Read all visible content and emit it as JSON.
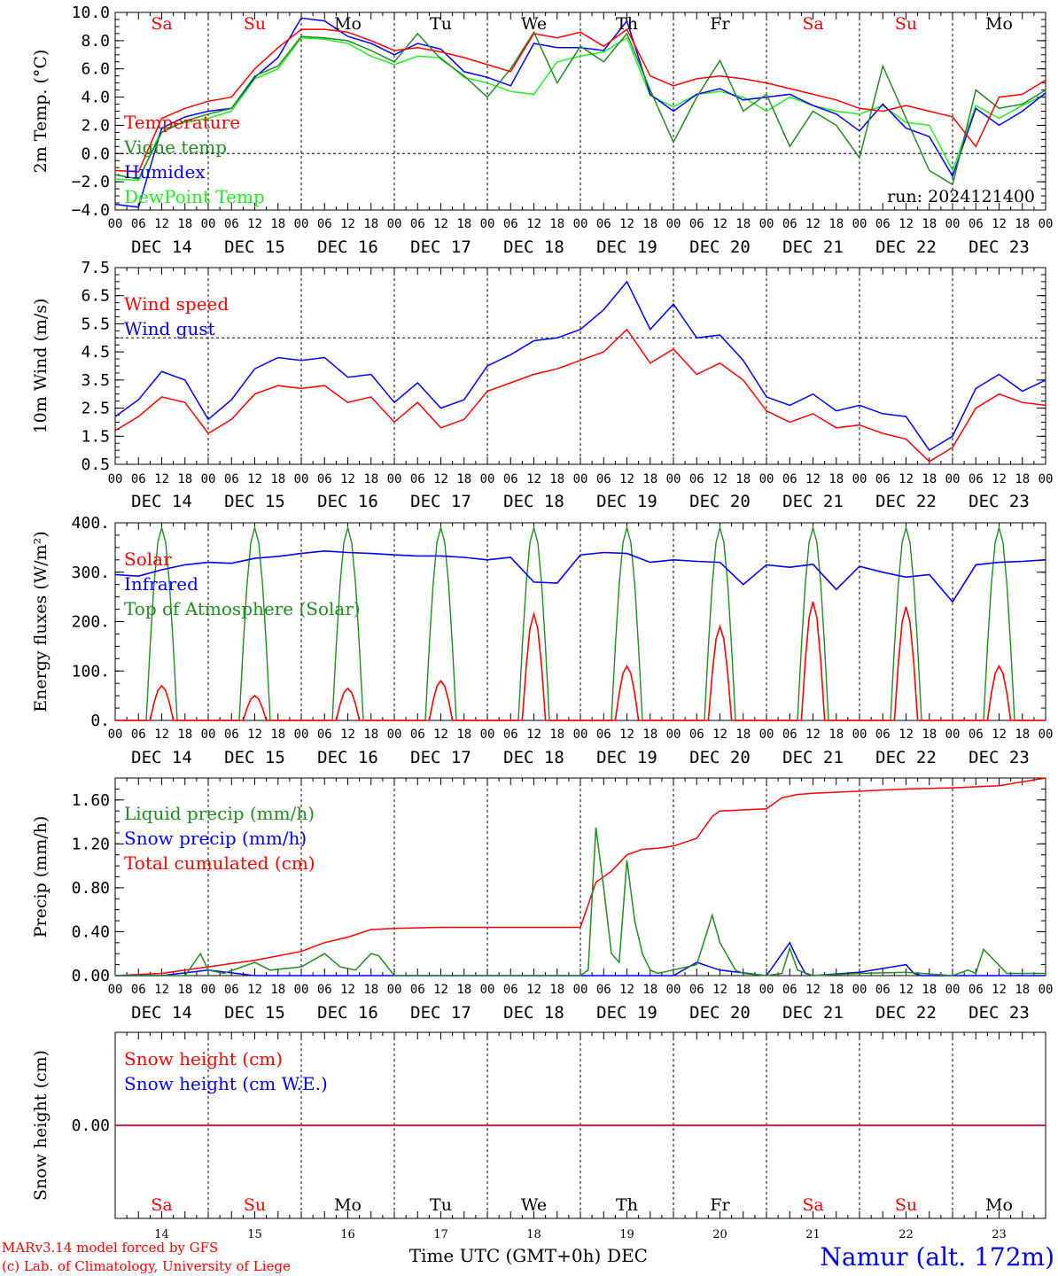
{
  "run_label": "run: 2024121400",
  "days": [
    {
      "abbr": "Sa",
      "num": "14",
      "date": "DEC 14",
      "weekend": true
    },
    {
      "abbr": "Su",
      "num": "15",
      "date": "DEC 15",
      "weekend": true
    },
    {
      "abbr": "Mo",
      "num": "16",
      "date": "DEC 16",
      "weekend": false
    },
    {
      "abbr": "Tu",
      "num": "17",
      "date": "DEC 17",
      "weekend": false
    },
    {
      "abbr": "We",
      "num": "18",
      "date": "DEC 18",
      "weekend": false
    },
    {
      "abbr": "Th",
      "num": "19",
      "date": "DEC 19",
      "weekend": false
    },
    {
      "abbr": "Fr",
      "num": "20",
      "date": "DEC 20",
      "weekend": false
    },
    {
      "abbr": "Sa",
      "num": "21",
      "date": "DEC 21",
      "weekend": true
    },
    {
      "abbr": "Su",
      "num": "22",
      "date": "DEC 22",
      "weekend": true
    },
    {
      "abbr": "Mo",
      "num": "23",
      "date": "DEC 23",
      "weekend": false
    }
  ],
  "hour_labels": [
    "00",
    "06",
    "12",
    "18"
  ],
  "end_hour_label": "00",
  "footer": {
    "xlabel": "Time UTC (GMT+0h)",
    "month": "DEC",
    "credit_line1": "MARv3.14 model forced by GFS",
    "credit_line2": "(c) Lab. of Climatology, University of Liege",
    "station": "Namur (alt. 172m)"
  },
  "colors": {
    "red": "#ff0000",
    "green": "#228b22",
    "blue": "#0000ff",
    "lightgreen": "#22ee22",
    "weekend": "#ff0000",
    "weekday": "#000000"
  },
  "chart_data": [
    {
      "type": "line",
      "id": "temp",
      "ylabel": "2m Temp. (°C)",
      "ylim": [
        -4,
        10
      ],
      "yticks": [
        -4,
        -2,
        0,
        2,
        4,
        6,
        8,
        10
      ],
      "ytick_labels": [
        "−4.0",
        "−2.0",
        "0.0",
        "2.0",
        "4.0",
        "6.0",
        "8.0",
        "10.0"
      ],
      "ref_line": 0,
      "x_unit": "hours since DEC 14 00 UTC",
      "series": [
        {
          "name": "Temperature",
          "color": "red",
          "x": [
            0,
            6,
            12,
            18,
            24,
            30,
            36,
            42,
            48,
            54,
            60,
            66,
            72,
            78,
            84,
            90,
            96,
            102,
            108,
            114,
            120,
            126,
            132,
            138,
            144,
            150,
            156,
            162,
            168,
            174,
            180,
            186,
            192,
            198,
            204,
            210,
            216,
            222,
            228,
            234,
            240
          ],
          "y": [
            -1.2,
            -1.3,
            2.5,
            3.2,
            3.7,
            4.0,
            6.0,
            7.5,
            8.8,
            8.8,
            8.6,
            8.0,
            7.3,
            7.5,
            7.2,
            6.8,
            6.3,
            5.8,
            8.5,
            8.2,
            8.6,
            7.6,
            8.8,
            5.5,
            4.8,
            5.3,
            5.5,
            5.3,
            5.0,
            4.6,
            4.2,
            3.8,
            3.2,
            3.0,
            3.4,
            3.0,
            2.6,
            0.5,
            4.0,
            4.2,
            5.2
          ]
        },
        {
          "name": "Vigne temp",
          "color": "green",
          "x": [
            0,
            6,
            12,
            18,
            24,
            30,
            36,
            42,
            48,
            54,
            60,
            66,
            72,
            78,
            84,
            90,
            96,
            102,
            108,
            114,
            120,
            126,
            132,
            138,
            144,
            150,
            156,
            162,
            168,
            174,
            180,
            186,
            192,
            198,
            204,
            210,
            216,
            222,
            228,
            234,
            240
          ],
          "y": [
            -1.5,
            -1.8,
            1.5,
            2.3,
            2.8,
            3.2,
            5.5,
            6.2,
            8.3,
            8.2,
            8.0,
            7.3,
            6.5,
            8.5,
            6.7,
            5.5,
            4.0,
            6.0,
            8.6,
            5.0,
            7.6,
            6.5,
            8.5,
            4.5,
            0.8,
            4.0,
            6.6,
            3.0,
            4.2,
            0.5,
            3.0,
            2.0,
            -0.3,
            6.2,
            2.5,
            -1.2,
            -2.2,
            4.5,
            3.2,
            3.5,
            4.5
          ]
        },
        {
          "name": "Humidex",
          "color": "blue",
          "x": [
            0,
            6,
            12,
            18,
            24,
            30,
            36,
            42,
            48,
            54,
            60,
            66,
            72,
            78,
            84,
            90,
            96,
            102,
            108,
            114,
            120,
            126,
            132,
            138,
            144,
            150,
            156,
            162,
            168,
            174,
            180,
            186,
            192,
            198,
            204,
            210,
            216,
            222,
            228,
            234,
            240
          ],
          "y": [
            -3.6,
            -3.8,
            1.8,
            2.6,
            3.0,
            3.2,
            5.4,
            6.8,
            9.6,
            9.4,
            8.3,
            7.8,
            7.0,
            7.8,
            7.4,
            5.8,
            5.4,
            4.8,
            7.8,
            7.5,
            7.5,
            7.3,
            9.4,
            4.2,
            3.0,
            4.2,
            4.6,
            3.8,
            4.0,
            4.2,
            3.4,
            2.8,
            1.6,
            3.5,
            1.8,
            1.2,
            -1.6,
            3.2,
            2.0,
            3.0,
            4.3
          ]
        },
        {
          "name": "DewPoint Temp",
          "color": "lightgreen",
          "x": [
            0,
            6,
            12,
            18,
            24,
            30,
            36,
            42,
            48,
            54,
            60,
            66,
            72,
            78,
            84,
            90,
            96,
            102,
            108,
            114,
            120,
            126,
            132,
            138,
            144,
            150,
            156,
            162,
            168,
            174,
            180,
            186,
            192,
            198,
            204,
            210,
            216,
            222,
            228,
            234,
            240
          ],
          "y": [
            -1.8,
            -1.9,
            1.7,
            2.2,
            2.5,
            3.0,
            5.3,
            6.0,
            8.2,
            8.1,
            7.8,
            6.9,
            6.3,
            6.9,
            6.8,
            5.4,
            5.0,
            4.4,
            4.2,
            6.5,
            6.9,
            7.2,
            8.2,
            4.1,
            3.3,
            4.2,
            4.4,
            4.0,
            3.0,
            4.0,
            3.4,
            3.0,
            2.8,
            3.4,
            2.2,
            2.0,
            -1.2,
            3.4,
            2.5,
            3.4,
            4.2
          ]
        }
      ]
    },
    {
      "type": "line",
      "id": "wind",
      "ylabel": "10m Wind (m/s)",
      "ylim": [
        0.5,
        7.5
      ],
      "yticks": [
        0.5,
        1.5,
        2.5,
        3.5,
        4.5,
        5.5,
        6.5,
        7.5
      ],
      "ytick_labels": [
        "0.5",
        "1.5",
        "2.5",
        "3.5",
        "4.5",
        "5.5",
        "6.5",
        "7.5"
      ],
      "ref_line": 5,
      "x_unit": "hours since DEC 14 00 UTC",
      "series": [
        {
          "name": "Wind speed",
          "color": "red",
          "x": [
            0,
            6,
            12,
            18,
            24,
            30,
            36,
            42,
            48,
            54,
            60,
            66,
            72,
            78,
            84,
            90,
            96,
            102,
            108,
            114,
            120,
            126,
            132,
            138,
            144,
            150,
            156,
            162,
            168,
            174,
            180,
            186,
            192,
            198,
            204,
            210,
            216,
            222,
            228,
            234,
            240
          ],
          "y": [
            1.7,
            2.2,
            2.9,
            2.7,
            1.6,
            2.1,
            3.0,
            3.3,
            3.2,
            3.3,
            2.7,
            2.9,
            2.0,
            2.7,
            1.8,
            2.1,
            3.1,
            3.4,
            3.7,
            3.9,
            4.2,
            4.5,
            5.3,
            4.1,
            4.6,
            3.7,
            4.1,
            3.5,
            2.4,
            2.0,
            2.3,
            1.8,
            1.9,
            1.6,
            1.4,
            0.6,
            1.1,
            2.5,
            3.0,
            2.7,
            2.6
          ]
        },
        {
          "name": "Wind gust",
          "color": "blue",
          "x": [
            0,
            6,
            12,
            18,
            24,
            30,
            36,
            42,
            48,
            54,
            60,
            66,
            72,
            78,
            84,
            90,
            96,
            102,
            108,
            114,
            120,
            126,
            132,
            138,
            144,
            150,
            156,
            162,
            168,
            174,
            180,
            186,
            192,
            198,
            204,
            210,
            216,
            222,
            228,
            234,
            240
          ],
          "y": [
            2.2,
            2.8,
            3.8,
            3.5,
            2.1,
            2.8,
            3.9,
            4.3,
            4.2,
            4.3,
            3.6,
            3.7,
            2.7,
            3.4,
            2.5,
            2.8,
            4.0,
            4.4,
            4.9,
            5.0,
            5.3,
            6.0,
            7.0,
            5.3,
            6.2,
            5.0,
            5.1,
            4.2,
            2.9,
            2.6,
            3.0,
            2.4,
            2.6,
            2.3,
            2.2,
            1.0,
            1.5,
            3.2,
            3.7,
            3.1,
            3.5
          ]
        }
      ]
    },
    {
      "type": "line",
      "id": "flux",
      "ylabel": "Energy fluxes (W/m²)",
      "ylim": [
        0,
        400
      ],
      "yticks": [
        0,
        100,
        200,
        300,
        400
      ],
      "ytick_labels": [
        "0.",
        "100.",
        "200.",
        "300.",
        "400."
      ],
      "x_unit": "hours since DEC 14 00 UTC",
      "series": [
        {
          "name": "Solar",
          "color": "red",
          "solar_peaks_x": [
            12,
            36,
            60,
            84,
            108,
            132,
            156,
            180,
            204,
            228
          ],
          "solar_peaks_y": [
            70,
            50,
            65,
            80,
            215,
            110,
            190,
            240,
            230,
            110
          ]
        },
        {
          "name": "Infrared",
          "color": "blue",
          "x": [
            0,
            6,
            12,
            18,
            24,
            30,
            36,
            42,
            48,
            54,
            60,
            66,
            72,
            78,
            84,
            90,
            96,
            102,
            108,
            114,
            120,
            126,
            132,
            138,
            144,
            150,
            156,
            162,
            168,
            174,
            180,
            186,
            192,
            198,
            204,
            210,
            216,
            222,
            228,
            234,
            240
          ],
          "y": [
            295,
            292,
            305,
            315,
            320,
            318,
            328,
            332,
            338,
            343,
            340,
            338,
            335,
            333,
            333,
            330,
            325,
            330,
            280,
            278,
            335,
            340,
            338,
            320,
            325,
            322,
            320,
            275,
            315,
            310,
            316,
            265,
            312,
            300,
            290,
            295,
            240,
            315,
            320,
            322,
            325
          ]
        },
        {
          "name": "Top of Atmosphere (Solar)",
          "color": "green",
          "toa_peak": 390,
          "toa_start_hour": 8,
          "toa_end_hour": 16
        }
      ]
    },
    {
      "type": "line",
      "id": "precip",
      "ylabel": "Precip (mm/h)",
      "ylim": [
        0,
        1.8
      ],
      "yticks": [
        0,
        0.4,
        0.8,
        1.2,
        1.6
      ],
      "ytick_labels": [
        "0.00",
        "0.40",
        "0.80",
        "1.20",
        "1.60"
      ],
      "x_unit": "hours since DEC 14 00 UTC",
      "series": [
        {
          "name": "Liquid precip (mm/h)",
          "color": "green",
          "x": [
            0,
            6,
            12,
            18,
            22,
            24,
            28,
            36,
            40,
            48,
            54,
            58,
            62,
            66,
            68,
            72,
            84,
            96,
            108,
            120,
            122,
            124,
            126,
            128,
            130,
            132,
            134,
            136,
            138,
            140,
            150,
            154,
            156,
            160,
            162,
            168,
            172,
            174,
            176,
            180,
            192,
            204,
            216,
            220,
            222,
            224,
            230,
            240
          ],
          "y": [
            0,
            0,
            0,
            0,
            0.2,
            0.05,
            0.02,
            0.12,
            0.05,
            0.08,
            0.2,
            0.08,
            0.05,
            0.2,
            0.18,
            0,
            0,
            0,
            0,
            0,
            0.05,
            1.35,
            0.8,
            0.2,
            0.12,
            1.05,
            0.5,
            0.2,
            0.05,
            0.02,
            0.1,
            0.55,
            0.3,
            0.05,
            0.02,
            0,
            0.02,
            0.25,
            0.05,
            0,
            0.02,
            0.03,
            0,
            0.05,
            0.02,
            0.24,
            0.02,
            0.02
          ]
        },
        {
          "name": "Snow precip (mm/h)",
          "color": "blue",
          "x": [
            0,
            12,
            24,
            36,
            48,
            60,
            72,
            84,
            96,
            108,
            120,
            132,
            144,
            150,
            156,
            168,
            174,
            176,
            178,
            180,
            192,
            204,
            206,
            208,
            216,
            228,
            240
          ],
          "y": [
            0,
            0,
            0.05,
            0,
            0,
            0,
            0,
            0,
            0,
            0,
            0,
            0,
            0,
            0.12,
            0.05,
            0,
            0.3,
            0.15,
            0.02,
            0,
            0.03,
            0.1,
            0.02,
            0,
            0,
            0,
            0
          ]
        },
        {
          "name": "Total cumulated (cm)",
          "color": "red",
          "x": [
            0,
            12,
            24,
            36,
            48,
            54,
            60,
            66,
            72,
            84,
            96,
            108,
            120,
            124,
            128,
            132,
            136,
            140,
            144,
            150,
            154,
            156,
            168,
            172,
            176,
            180,
            192,
            204,
            216,
            228,
            240
          ],
          "y": [
            0,
            0.02,
            0.08,
            0.14,
            0.22,
            0.3,
            0.35,
            0.42,
            0.43,
            0.44,
            0.44,
            0.44,
            0.44,
            0.85,
            0.95,
            1.1,
            1.15,
            1.16,
            1.18,
            1.25,
            1.45,
            1.5,
            1.52,
            1.62,
            1.65,
            1.66,
            1.68,
            1.7,
            1.71,
            1.73,
            1.8
          ]
        }
      ]
    },
    {
      "type": "line",
      "id": "snow",
      "ylabel": "Snow height (cm)",
      "ylim": [
        -0.5,
        0.5
      ],
      "yticks": [
        0
      ],
      "ytick_labels": [
        "0.00"
      ],
      "x_unit": "hours since DEC 14 00 UTC",
      "series": [
        {
          "name": "Snow height (cm)",
          "color": "red",
          "x": [
            0,
            240
          ],
          "y": [
            0,
            0
          ]
        },
        {
          "name": "Snow height (cm W.E.)",
          "color": "blue",
          "x": [
            0,
            240
          ],
          "y": [
            0,
            0
          ]
        }
      ]
    }
  ]
}
